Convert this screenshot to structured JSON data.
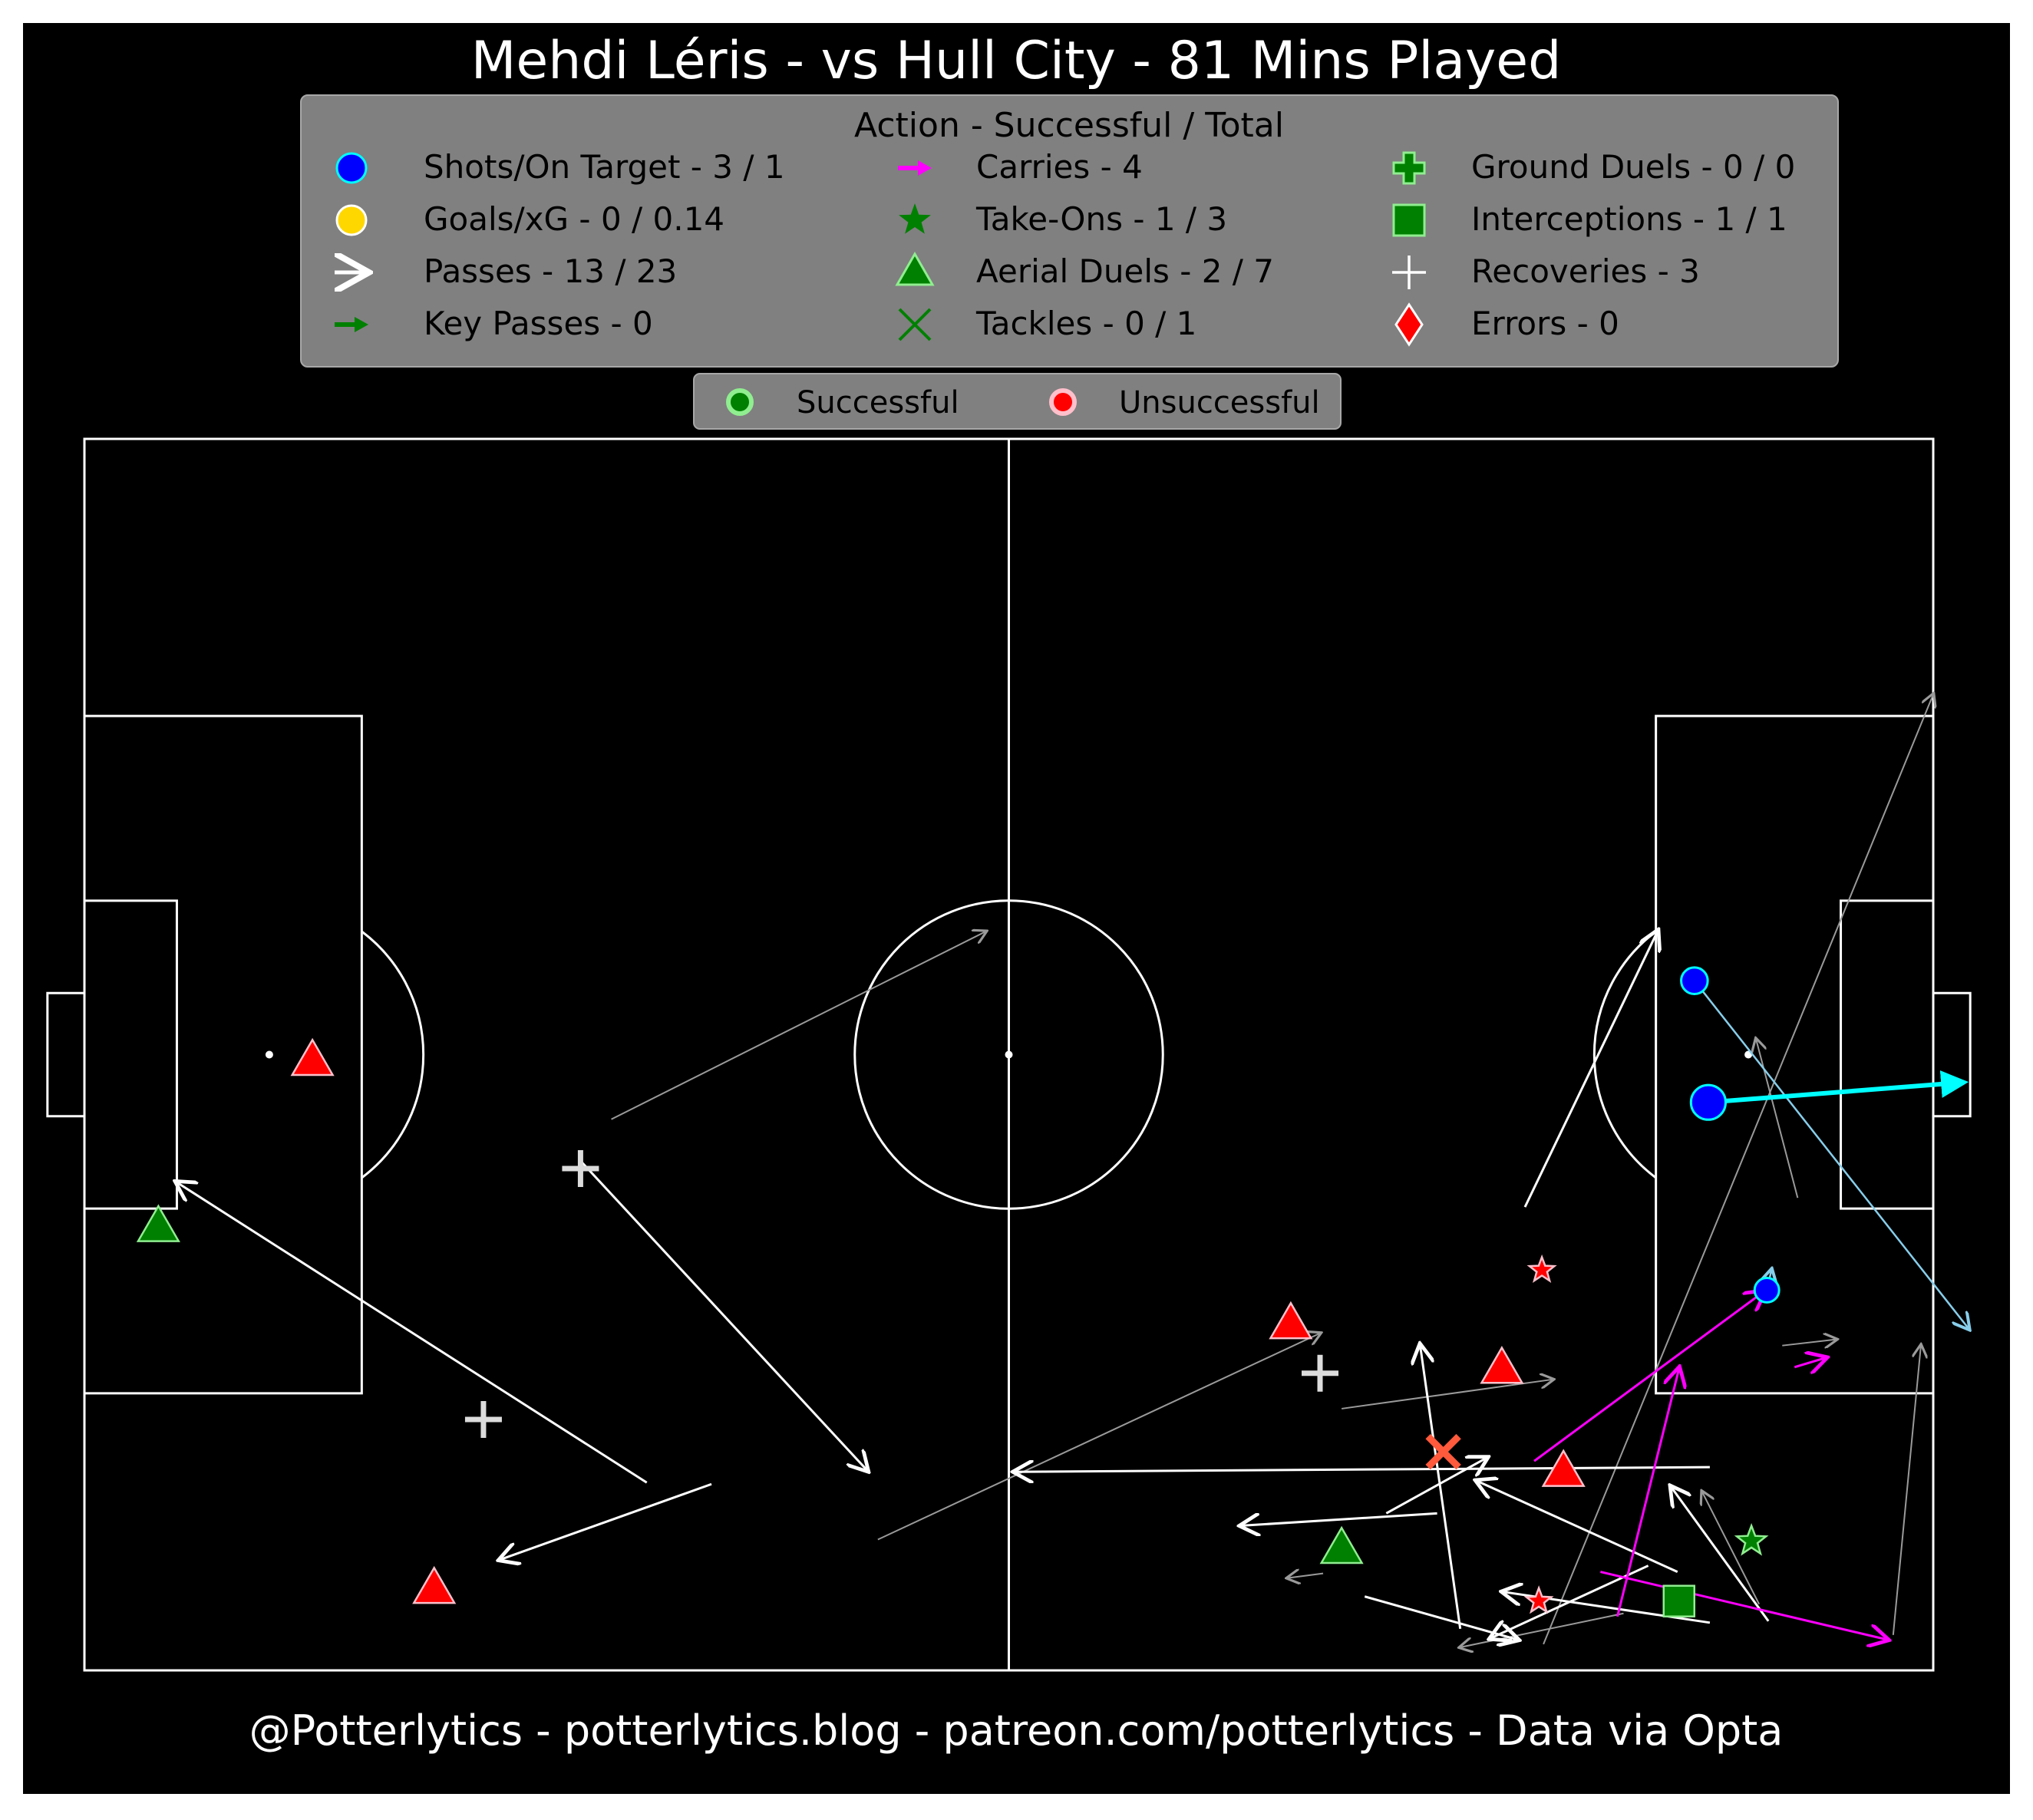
{
  "title": "Mehdi Léris - vs Hull City - 81 Mins Played",
  "footer": "@Potterlytics - potterlytics.blog - patreon.com/potterlytics - Data via Opta",
  "colors": {
    "background": "#000000",
    "pitch_lines": "#ffffff",
    "legend_bg": "#808080",
    "successful": "#008000",
    "unsuccessful": "#ff0000",
    "shot": "#0000ff",
    "goal": "#ffd700",
    "pass": "#ffffff",
    "failed_pass": "#9a9a9a",
    "key_pass": "#008000",
    "carry": "#ff00ff",
    "shot_path_on_target": "#00ffff",
    "shot_path": "#87ceeb"
  },
  "legend": {
    "header": "Action - Successful / Total",
    "items": [
      {
        "label": "Shots/On Target - 3 / 1",
        "icon": "circle-blue-icon"
      },
      {
        "label": "Goals/xG - 0 / 0.14",
        "icon": "circle-gold-icon"
      },
      {
        "label": "Passes - 13 / 23",
        "icon": "arrow-white-icon"
      },
      {
        "label": "Key Passes - 0",
        "icon": "arrow-green-icon"
      },
      {
        "label": "Carries - 4",
        "icon": "arrow-magenta-icon"
      },
      {
        "label": "Take-Ons - 1 / 3",
        "icon": "star-icon"
      },
      {
        "label": "Aerial Duels - 2 / 7",
        "icon": "triangle-icon"
      },
      {
        "label": "Tackles - 0 / 1",
        "icon": "x-icon"
      },
      {
        "label": "Ground Duels - 0 / 0",
        "icon": "cross-icon"
      },
      {
        "label": "Interceptions - 1 / 1",
        "icon": "square-icon"
      },
      {
        "label": "Recoveries - 3",
        "icon": "plus-icon"
      },
      {
        "label": "Errors - 0",
        "icon": "diamond-icon"
      }
    ]
  },
  "status_legend": {
    "successful": "Successful",
    "unsuccessful": "Unsuccessful"
  },
  "chart_data": {
    "type": "scatter",
    "pitch": {
      "length": 120,
      "width": 80,
      "orientation": "left-to-right attacking"
    },
    "passes_successful": [
      {
        "from": [
          36.5,
          12.2
        ],
        "to": [
          6.0,
          31.7
        ]
      },
      {
        "from": [
          32.2,
          33.1
        ],
        "to": [
          50.8,
          13.0
        ]
      },
      {
        "from": [
          40.7,
          12.1
        ],
        "to": [
          27.0,
          7.2
        ]
      },
      {
        "from": [
          93.5,
          30.1
        ],
        "to": [
          102.1,
          48.0
        ]
      },
      {
        "from": [
          105.5,
          13.2
        ],
        "to": [
          60.4,
          12.9
        ]
      },
      {
        "from": [
          87.8,
          10.2
        ],
        "to": [
          75.1,
          9.4
        ]
      },
      {
        "from": [
          84.5,
          10.2
        ],
        "to": [
          91.0,
          13.8
        ]
      },
      {
        "from": [
          101.5,
          6.8
        ],
        "to": [
          91.3,
          2.1
        ]
      },
      {
        "from": [
          83.1,
          4.8
        ],
        "to": [
          93.0,
          2.0
        ]
      },
      {
        "from": [
          89.3,
          2.7
        ],
        "to": [
          86.7,
          21.1
        ]
      },
      {
        "from": [
          103.4,
          6.4
        ],
        "to": [
          90.4,
          12.3
        ]
      },
      {
        "from": [
          109.3,
          3.2
        ],
        "to": [
          103.0,
          11.9
        ]
      },
      {
        "from": [
          105.5,
          3.1
        ],
        "to": [
          92.1,
          5.1
        ]
      }
    ],
    "passes_unsuccessful": [
      {
        "from": [
          34.2,
          35.8
        ],
        "to": [
          58.5,
          48.0
        ]
      },
      {
        "from": [
          51.5,
          8.5
        ],
        "to": [
          80.2,
          21.9
        ]
      },
      {
        "from": [
          81.6,
          17.0
        ],
        "to": [
          95.3,
          18.9
        ]
      },
      {
        "from": [
          94.7,
          1.7
        ],
        "to": [
          120.0,
          63.4
        ]
      },
      {
        "from": [
          99.9,
          3.7
        ],
        "to": [
          89.3,
          1.5
        ]
      },
      {
        "from": [
          80.4,
          6.3
        ],
        "to": [
          78.1,
          6.0
        ]
      },
      {
        "from": [
          111.2,
          30.7
        ],
        "to": [
          108.5,
          41.0
        ]
      },
      {
        "from": [
          117.4,
          2.3
        ],
        "to": [
          119.2,
          21.1
        ]
      },
      {
        "from": [
          108.7,
          4.3
        ],
        "to": [
          105.0,
          11.6
        ]
      },
      {
        "from": [
          110.2,
          21.1
        ],
        "to": [
          113.7,
          21.5
        ]
      }
    ],
    "carries": [
      {
        "from": [
          94.1,
          13.6
        ],
        "to": [
          109.0,
          24.6
        ]
      },
      {
        "from": [
          98.4,
          6.4
        ],
        "to": [
          117.0,
          2.0
        ]
      },
      {
        "from": [
          99.5,
          3.5
        ],
        "to": [
          103.5,
          19.6
        ]
      },
      {
        "from": [
          111.0,
          19.7
        ],
        "to": [
          113.0,
          20.3
        ]
      }
    ],
    "shots": [
      {
        "x": 104.5,
        "y": 44.8,
        "end": [
          122.3,
          22.2
        ],
        "on_target": false,
        "xg": 0.03
      },
      {
        "x": 105.4,
        "y": 36.9,
        "end": [
          122.0,
          38.2
        ],
        "on_target": true,
        "xg": 0.09
      },
      {
        "x": 109.2,
        "y": 24.7,
        "end": [
          109.5,
          26.0
        ],
        "on_target": false,
        "xg": 0.02
      }
    ],
    "take_ons": [
      {
        "x": 94.6,
        "y": 26.0,
        "successful": false
      },
      {
        "x": 108.2,
        "y": 8.4,
        "successful": true
      },
      {
        "x": 94.4,
        "y": 4.5,
        "successful": false
      }
    ],
    "aerial_duels": [
      {
        "x": 14.8,
        "y": 39.6,
        "successful": false
      },
      {
        "x": 4.8,
        "y": 28.8,
        "successful": true
      },
      {
        "x": 22.7,
        "y": 5.3,
        "successful": false
      },
      {
        "x": 78.3,
        "y": 22.5,
        "successful": false
      },
      {
        "x": 92.0,
        "y": 19.6,
        "successful": false
      },
      {
        "x": 96.0,
        "y": 12.9,
        "successful": false
      },
      {
        "x": 81.6,
        "y": 7.9,
        "successful": true
      }
    ],
    "tackles": [
      {
        "x": 88.2,
        "y": 14.2,
        "successful": false
      }
    ],
    "interceptions": [
      {
        "x": 103.5,
        "y": 4.5,
        "successful": true
      }
    ],
    "recoveries": [
      {
        "x": 32.2,
        "y": 32.6
      },
      {
        "x": 25.9,
        "y": 16.3
      },
      {
        "x": 80.2,
        "y": 19.3
      }
    ]
  }
}
